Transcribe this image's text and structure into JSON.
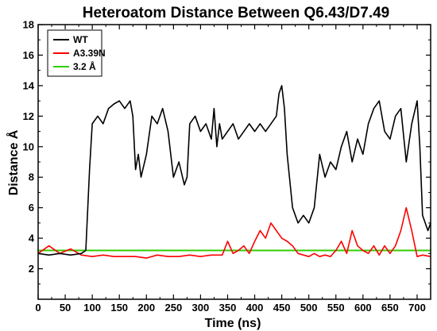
{
  "chart_data": {
    "type": "line",
    "title": "Heteroatom Distance Between Q6.43/D7.49",
    "xlabel": "Time (ns)",
    "ylabel": "Distance Å",
    "xlim": [
      0,
      725
    ],
    "ylim": [
      0,
      18
    ],
    "xticks": [
      0,
      50,
      100,
      150,
      200,
      250,
      300,
      350,
      400,
      450,
      500,
      550,
      600,
      650,
      700
    ],
    "yticks": [
      2,
      4,
      6,
      8,
      10,
      12,
      14,
      16,
      18
    ],
    "grid": false,
    "legend_position": "top-left",
    "series": [
      {
        "name": "WT",
        "color": "#000000",
        "x": [
          0,
          20,
          40,
          60,
          80,
          88,
          95,
          100,
          110,
          120,
          130,
          140,
          150,
          160,
          170,
          175,
          180,
          185,
          190,
          200,
          210,
          220,
          230,
          240,
          250,
          260,
          270,
          275,
          280,
          290,
          300,
          310,
          320,
          325,
          330,
          335,
          340,
          350,
          360,
          370,
          380,
          390,
          400,
          410,
          420,
          430,
          440,
          445,
          450,
          455,
          460,
          470,
          480,
          490,
          500,
          510,
          520,
          530,
          540,
          550,
          560,
          570,
          580,
          590,
          600,
          610,
          620,
          630,
          640,
          650,
          660,
          670,
          680,
          690,
          700,
          705,
          710,
          720,
          725
        ],
        "y": [
          3.0,
          2.9,
          3.0,
          2.9,
          3.0,
          3.2,
          8.5,
          11.5,
          12.0,
          11.5,
          12.5,
          12.8,
          13.0,
          12.5,
          13.0,
          12.0,
          8.5,
          9.5,
          8.0,
          9.5,
          12.0,
          11.5,
          12.5,
          11.0,
          8.0,
          9.0,
          7.5,
          8.0,
          11.5,
          12.0,
          11.0,
          11.5,
          10.5,
          12.5,
          10.0,
          11.5,
          10.5,
          11.0,
          11.5,
          10.5,
          11.0,
          11.5,
          11.0,
          11.5,
          11.0,
          11.5,
          12.0,
          13.5,
          14.0,
          12.5,
          9.5,
          6.0,
          5.0,
          5.5,
          5.0,
          6.0,
          9.5,
          8.0,
          9.0,
          8.5,
          10.0,
          11.0,
          9.0,
          10.5,
          9.5,
          11.5,
          12.5,
          13.0,
          11.0,
          10.5,
          12.0,
          12.5,
          9.0,
          11.5,
          13.0,
          10.0,
          5.5,
          4.5,
          5.0
        ]
      },
      {
        "name": "A3.39N",
        "color": "#ff0000",
        "x": [
          0,
          20,
          40,
          60,
          80,
          100,
          120,
          140,
          160,
          180,
          200,
          220,
          240,
          260,
          280,
          300,
          320,
          340,
          350,
          360,
          370,
          380,
          390,
          400,
          410,
          420,
          430,
          440,
          450,
          460,
          470,
          480,
          490,
          500,
          510,
          520,
          530,
          540,
          550,
          560,
          570,
          580,
          590,
          600,
          610,
          620,
          630,
          640,
          650,
          660,
          670,
          680,
          690,
          700,
          710,
          725
        ],
        "y": [
          3.0,
          3.5,
          3.0,
          3.3,
          2.9,
          2.8,
          2.9,
          2.8,
          2.8,
          2.8,
          2.7,
          2.9,
          2.8,
          2.8,
          2.9,
          2.8,
          2.9,
          2.9,
          3.8,
          3.0,
          3.2,
          3.5,
          3.0,
          3.8,
          4.5,
          4.0,
          5.0,
          4.5,
          4.0,
          3.8,
          3.5,
          3.0,
          2.9,
          2.8,
          3.0,
          2.8,
          2.9,
          2.8,
          3.2,
          3.8,
          3.0,
          4.5,
          3.5,
          3.2,
          3.0,
          3.5,
          2.9,
          3.5,
          3.0,
          3.5,
          4.5,
          6.0,
          4.5,
          2.8,
          2.9,
          2.8
        ]
      },
      {
        "name": "3.2 Å",
        "color": "#33cc00",
        "x": [
          0,
          725
        ],
        "y": [
          3.2,
          3.2
        ]
      }
    ]
  }
}
